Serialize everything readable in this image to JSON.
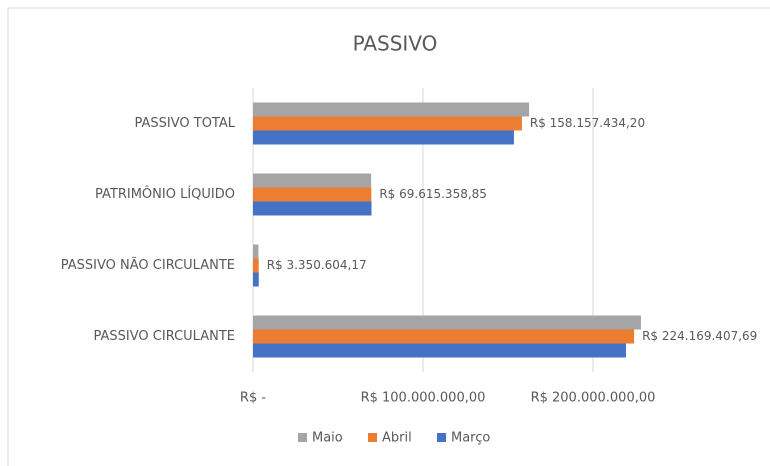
{
  "chart_data": {
    "type": "bar",
    "orientation": "horizontal",
    "title": "PASSIVO",
    "categories": [
      "PASSIVO TOTAL",
      "PATRIMÔNIO LÍQUIDO",
      "PASSIVO NÃO CIRCULANTE",
      "PASSIVO CIRCULANTE"
    ],
    "series": [
      {
        "name": "Maio",
        "color": "#a5a5a5",
        "values": [
          162400000,
          69500000,
          3200000,
          228200000
        ]
      },
      {
        "name": "Abril",
        "color": "#ed7d31",
        "values": [
          158157434.2,
          69615358.85,
          3350604.17,
          224169407.69
        ],
        "value_labels": [
          "R$ 158.157.434,20",
          "R$ 69.615.358,85",
          "R$ 3.350.604,17",
          "R$ 224.169.407,69"
        ]
      },
      {
        "name": "Março",
        "color": "#4472c4",
        "values": [
          153500000,
          69700000,
          3400000,
          219400000
        ]
      }
    ],
    "xlim": [
      0,
      300000000
    ],
    "xticks": [
      {
        "value": 0,
        "label": "R$ -"
      },
      {
        "value": 100000000,
        "label": "R$ 100.000.000,00"
      },
      {
        "value": 200000000,
        "label": "R$ 200.000.000,00"
      }
    ],
    "grid": true,
    "legend": "bottom"
  }
}
